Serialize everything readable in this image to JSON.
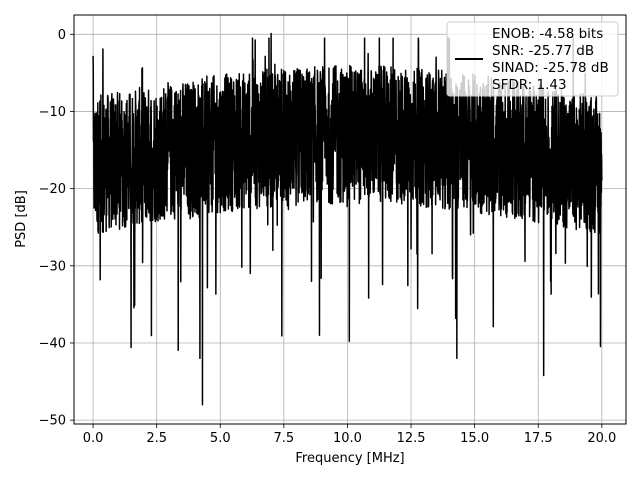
{
  "chart_data": {
    "type": "line",
    "title": "",
    "xlabel": "Frequency [MHz]",
    "ylabel": "PSD [dB]",
    "xlim": [
      -0.75,
      20.95
    ],
    "ylim": [
      -50.5,
      2.5
    ],
    "xticks": [
      0.0,
      2.5,
      5.0,
      7.5,
      10.0,
      12.5,
      15.0,
      17.5,
      20.0
    ],
    "xtick_labels": [
      "0.0",
      "2.5",
      "5.0",
      "7.5",
      "10.0",
      "12.5",
      "15.0",
      "17.5",
      "20.0"
    ],
    "yticks": [
      0,
      -10,
      -20,
      -30,
      -40,
      -50
    ],
    "ytick_labels": [
      "0",
      "−10",
      "−20",
      "−30",
      "−40",
      "−50"
    ],
    "grid": true,
    "legend_placement": "top-right",
    "series": [
      {
        "name": "",
        "color": "#000000",
        "x_start": 0.0,
        "x_end": 20.0,
        "noise_floor_db": -15,
        "peak_values": [
          {
            "x": 0.0,
            "y": -2.8
          },
          {
            "x": 4.2,
            "y": -42.0
          },
          {
            "x": 4.3,
            "y": -48.0
          },
          {
            "x": 7.0,
            "y": 0.1
          },
          {
            "x": 8.9,
            "y": -39.0
          },
          {
            "x": 14.3,
            "y": -42.0
          }
        ]
      }
    ],
    "legend": {
      "line_color": "#000000",
      "entries": [
        "ENOB: -4.58 bits",
        "SNR: -25.77 dB",
        "SINAD: -25.78 dB",
        "SFDR: 1.43"
      ]
    }
  }
}
